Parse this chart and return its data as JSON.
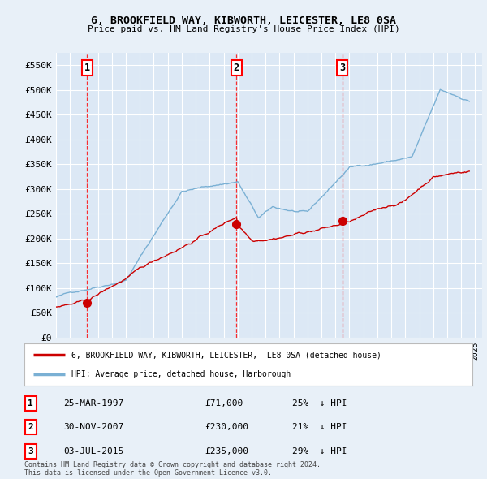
{
  "title": "6, BROOKFIELD WAY, KIBWORTH, LEICESTER, LE8 0SA",
  "subtitle": "Price paid vs. HM Land Registry's House Price Index (HPI)",
  "background_color": "#e8f0f8",
  "plot_bg_color": "#dce8f5",
  "grid_color": "#ffffff",
  "hpi_color": "#7ab0d4",
  "price_color": "#cc0000",
  "ylim": [
    0,
    575000
  ],
  "yticks": [
    0,
    50000,
    100000,
    150000,
    200000,
    250000,
    300000,
    350000,
    400000,
    450000,
    500000,
    550000
  ],
  "ytick_labels": [
    "£0",
    "£50K",
    "£100K",
    "£150K",
    "£200K",
    "£250K",
    "£300K",
    "£350K",
    "£400K",
    "£450K",
    "£500K",
    "£550K"
  ],
  "xlim_start": 1995.0,
  "xlim_end": 2025.5,
  "transactions": [
    {
      "num": 1,
      "year": 1997.23,
      "price": 71000,
      "date": "25-MAR-1997",
      "price_str": "£71,000",
      "pct": "25%"
    },
    {
      "num": 2,
      "year": 2007.92,
      "price": 230000,
      "date": "30-NOV-2007",
      "price_str": "£230,000",
      "pct": "21%"
    },
    {
      "num": 3,
      "year": 2015.5,
      "price": 235000,
      "date": "03-JUL-2015",
      "price_str": "£235,000",
      "pct": "29%"
    }
  ],
  "legend_label_price": "6, BROOKFIELD WAY, KIBWORTH, LEICESTER,  LE8 0SA (detached house)",
  "legend_label_hpi": "HPI: Average price, detached house, Harborough",
  "footer": "Contains HM Land Registry data © Crown copyright and database right 2024.\nThis data is licensed under the Open Government Licence v3.0."
}
